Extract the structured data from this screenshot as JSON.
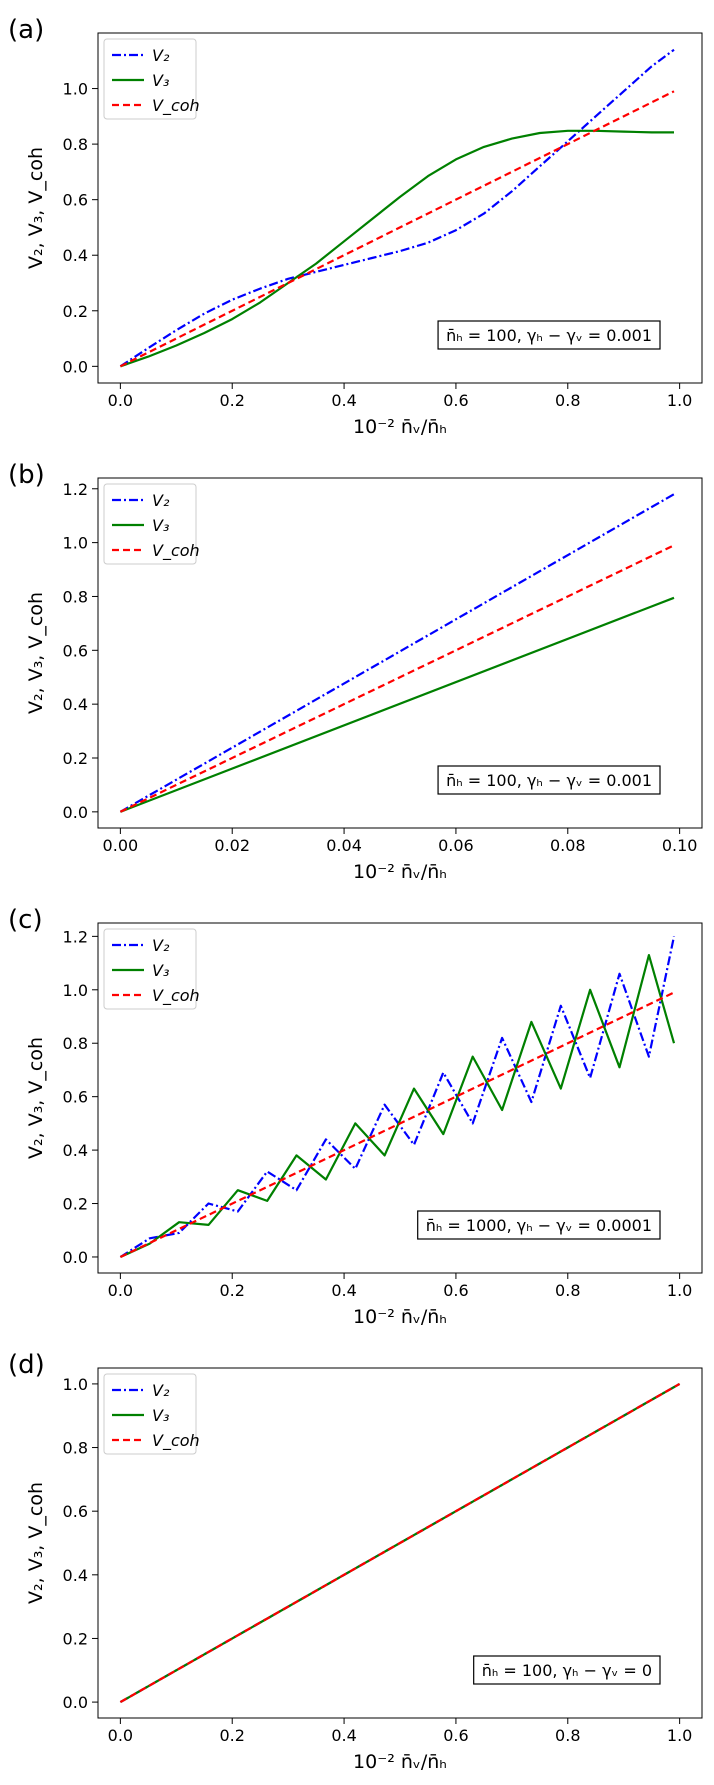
{
  "chart_data": [
    {
      "type": "line",
      "panel_label": "(a)",
      "xlabel": "10⁻² n̄ᵥ/n̄ₕ",
      "ylabel": "V₂, V₃, V_coh",
      "xlim": [
        -0.04,
        1.04
      ],
      "ylim": [
        -0.06,
        1.2
      ],
      "xticks": [
        0.0,
        0.2,
        0.4,
        0.6,
        0.8,
        1.0
      ],
      "xtick_labels": [
        "0.0",
        "0.2",
        "0.4",
        "0.6",
        "0.8",
        "1.0"
      ],
      "yticks": [
        0.0,
        0.2,
        0.4,
        0.6,
        0.8,
        1.0
      ],
      "ytick_labels": [
        "0.0",
        "0.2",
        "0.4",
        "0.6",
        "0.8",
        "1.0"
      ],
      "legend_position": "top-left",
      "annotation": "n̄ₕ = 100, γₕ − γᵥ = 0.001",
      "grid": false,
      "series": [
        {
          "name": "V₂",
          "color": "#0000ff",
          "dash": "dashdot",
          "x": [
            0,
            0.05,
            0.1,
            0.15,
            0.2,
            0.25,
            0.3,
            0.35,
            0.4,
            0.45,
            0.5,
            0.55,
            0.6,
            0.65,
            0.7,
            0.75,
            0.8,
            0.85,
            0.9,
            0.95,
            0.99
          ],
          "y": [
            0,
            0.066,
            0.13,
            0.19,
            0.24,
            0.28,
            0.315,
            0.34,
            0.365,
            0.39,
            0.415,
            0.445,
            0.49,
            0.55,
            0.63,
            0.72,
            0.81,
            0.9,
            0.99,
            1.08,
            1.14
          ]
        },
        {
          "name": "V₃",
          "color": "#008000",
          "dash": "solid",
          "x": [
            0,
            0.05,
            0.1,
            0.15,
            0.2,
            0.25,
            0.3,
            0.35,
            0.4,
            0.45,
            0.5,
            0.55,
            0.6,
            0.65,
            0.7,
            0.75,
            0.8,
            0.85,
            0.9,
            0.95,
            0.99
          ],
          "y": [
            0,
            0.035,
            0.075,
            0.12,
            0.17,
            0.23,
            0.3,
            0.37,
            0.45,
            0.53,
            0.61,
            0.685,
            0.745,
            0.79,
            0.82,
            0.84,
            0.848,
            0.848,
            0.845,
            0.842,
            0.842
          ]
        },
        {
          "name": "V_coh",
          "color": "#ff0000",
          "dash": "dashed",
          "x": [
            0,
            0.99
          ],
          "y": [
            0,
            0.99
          ]
        }
      ]
    },
    {
      "type": "line",
      "panel_label": "(b)",
      "xlabel": "10⁻² n̄ᵥ/n̄ₕ",
      "ylabel": "V₂, V₃, V_coh",
      "xlim": [
        -0.004,
        0.104
      ],
      "ylim": [
        -0.06,
        1.24
      ],
      "xticks": [
        0.0,
        0.02,
        0.04,
        0.06,
        0.08,
        0.1
      ],
      "xtick_labels": [
        "0.00",
        "0.02",
        "0.04",
        "0.06",
        "0.08",
        "0.10"
      ],
      "yticks": [
        0.0,
        0.2,
        0.4,
        0.6,
        0.8,
        1.0,
        1.2
      ],
      "ytick_labels": [
        "0.0",
        "0.2",
        "0.4",
        "0.6",
        "0.8",
        "1.0",
        "1.2"
      ],
      "legend_position": "top-left",
      "annotation": "n̄ₕ = 100, γₕ − γᵥ = 0.001",
      "grid": false,
      "series": [
        {
          "name": "V₂",
          "color": "#0000ff",
          "dash": "dashdot",
          "x": [
            0,
            0.099
          ],
          "y": [
            0,
            1.18
          ]
        },
        {
          "name": "V₃",
          "color": "#008000",
          "dash": "solid",
          "x": [
            0,
            0.099
          ],
          "y": [
            0,
            0.795
          ]
        },
        {
          "name": "V_coh",
          "color": "#ff0000",
          "dash": "dashed",
          "x": [
            0,
            0.099
          ],
          "y": [
            0,
            0.99
          ]
        }
      ]
    },
    {
      "type": "line",
      "panel_label": "(c)",
      "xlabel": "10⁻² n̄ᵥ/n̄ₕ",
      "ylabel": "V₂, V₃, V_coh",
      "xlim": [
        -0.04,
        1.04
      ],
      "ylim": [
        -0.06,
        1.25
      ],
      "xticks": [
        0.0,
        0.2,
        0.4,
        0.6,
        0.8,
        1.0
      ],
      "xtick_labels": [
        "0.0",
        "0.2",
        "0.4",
        "0.6",
        "0.8",
        "1.0"
      ],
      "yticks": [
        0.0,
        0.2,
        0.4,
        0.6,
        0.8,
        1.0,
        1.2
      ],
      "ytick_labels": [
        "0.0",
        "0.2",
        "0.4",
        "0.6",
        "0.8",
        "1.0",
        "1.2"
      ],
      "legend_position": "top-left",
      "annotation": "n̄ₕ = 1000, γₕ − γᵥ = 0.0001",
      "grid": false,
      "series": [
        {
          "name": "V₂",
          "color": "#0000ff",
          "dash": "dashdot",
          "x": [
            0,
            0.0525,
            0.105,
            0.1575,
            0.21,
            0.2625,
            0.315,
            0.3675,
            0.42,
            0.4725,
            0.525,
            0.5775,
            0.63,
            0.6825,
            0.735,
            0.7875,
            0.84,
            0.8925,
            0.945,
            0.99
          ],
          "y": [
            0,
            0.07,
            0.09,
            0.2,
            0.17,
            0.32,
            0.25,
            0.44,
            0.33,
            0.57,
            0.42,
            0.69,
            0.5,
            0.82,
            0.58,
            0.94,
            0.67,
            1.06,
            0.75,
            1.2
          ]
        },
        {
          "name": "V₃",
          "color": "#008000",
          "dash": "solid",
          "x": [
            0,
            0.0525,
            0.105,
            0.1575,
            0.21,
            0.2625,
            0.315,
            0.3675,
            0.42,
            0.4725,
            0.525,
            0.5775,
            0.63,
            0.6825,
            0.735,
            0.7875,
            0.84,
            0.8925,
            0.945,
            0.99
          ],
          "y": [
            0,
            0.05,
            0.13,
            0.12,
            0.25,
            0.21,
            0.38,
            0.29,
            0.5,
            0.38,
            0.63,
            0.46,
            0.75,
            0.55,
            0.88,
            0.63,
            1.0,
            0.71,
            1.13,
            0.8
          ]
        },
        {
          "name": "V_coh",
          "color": "#ff0000",
          "dash": "dashed",
          "x": [
            0,
            0.99
          ],
          "y": [
            0,
            0.99
          ]
        }
      ]
    },
    {
      "type": "line",
      "panel_label": "(d)",
      "xlabel": "10⁻² n̄ᵥ/n̄ₕ",
      "ylabel": "V₂, V₃, V_coh",
      "xlim": [
        -0.04,
        1.04
      ],
      "ylim": [
        -0.05,
        1.05
      ],
      "xticks": [
        0.0,
        0.2,
        0.4,
        0.6,
        0.8,
        1.0
      ],
      "xtick_labels": [
        "0.0",
        "0.2",
        "0.4",
        "0.6",
        "0.8",
        "1.0"
      ],
      "yticks": [
        0.0,
        0.2,
        0.4,
        0.6,
        0.8,
        1.0
      ],
      "ytick_labels": [
        "0.0",
        "0.2",
        "0.4",
        "0.6",
        "0.8",
        "1.0"
      ],
      "legend_position": "top-left",
      "annotation": "n̄ₕ = 100, γₕ − γᵥ = 0",
      "grid": false,
      "series": [
        {
          "name": "V₂",
          "color": "#0000ff",
          "dash": "dashdot",
          "x": [
            0,
            1.0
          ],
          "y": [
            0,
            1.0
          ]
        },
        {
          "name": "V₃",
          "color": "#008000",
          "dash": "solid",
          "x": [
            0,
            1.0
          ],
          "y": [
            0,
            1.0
          ]
        },
        {
          "name": "V_coh",
          "color": "#ff0000",
          "dash": "dashed",
          "x": [
            0,
            1.0
          ],
          "y": [
            0,
            1.0
          ]
        }
      ]
    }
  ]
}
